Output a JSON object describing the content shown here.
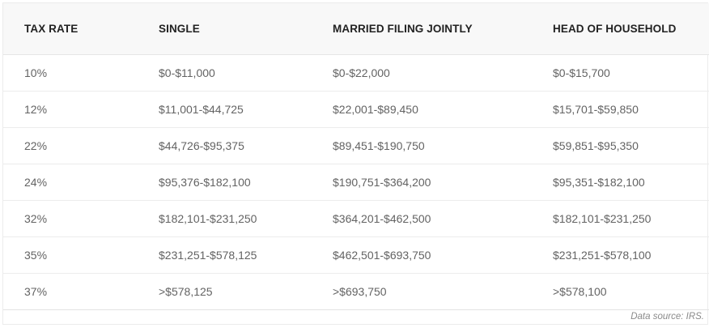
{
  "table": {
    "headers": [
      "TAX RATE",
      "SINGLE",
      "MARRIED FILING JOINTLY",
      "HEAD OF HOUSEHOLD"
    ],
    "rows": [
      [
        "10%",
        "$0-$11,000",
        "$0-$22,000",
        "$0-$15,700"
      ],
      [
        "12%",
        "$11,001-$44,725",
        "$22,001-$89,450",
        "$15,701-$59,850"
      ],
      [
        "22%",
        "$44,726-$95,375",
        "$89,451-$190,750",
        "$59,851-$95,350"
      ],
      [
        "24%",
        "$95,376-$182,100",
        "$190,751-$364,200",
        "$95,351-$182,100"
      ],
      [
        "32%",
        "$182,101-$231,250",
        "$364,201-$462,500",
        "$182,101-$231,250"
      ],
      [
        "35%",
        "$231,251-$578,125",
        "$462,501-$693,750",
        "$231,251-$578,100"
      ],
      [
        "37%",
        ">$578,125",
        ">$693,750",
        ">$578,100"
      ]
    ]
  },
  "footer": {
    "source": "Data source: IRS."
  }
}
